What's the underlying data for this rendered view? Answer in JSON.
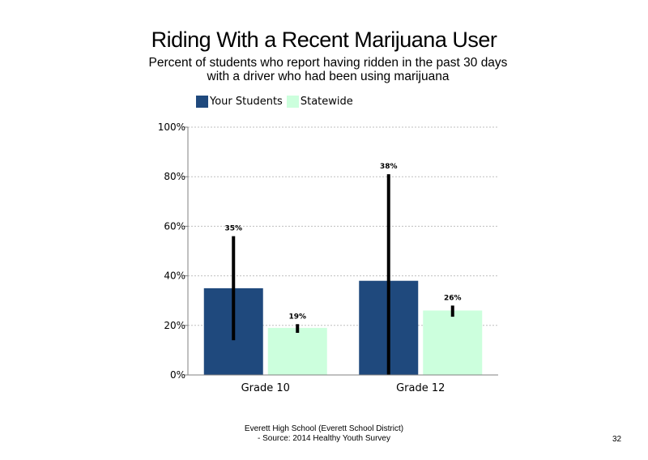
{
  "title": "Riding With a Recent Marijuana User",
  "subtitle": "Percent of students who report having ridden in the past 30 days with a driver who had been using marijuana",
  "footer": {
    "line1": "Everett High School (Everett School District)",
    "line2": "- Source: 2014 Healthy Youth Survey"
  },
  "page_number": "32",
  "colors": {
    "your_students": "#1f497d",
    "statewide": "#ccffdd",
    "error_bar": "#000000",
    "grid": "#bfbfbf",
    "axis": "#808080"
  },
  "chart_data": {
    "type": "bar",
    "categories": [
      "Grade 10",
      "Grade 12"
    ],
    "series": [
      {
        "name": "Your Students",
        "values": [
          35,
          38
        ],
        "labels": [
          "35%",
          "38%"
        ],
        "error_low": [
          14,
          0
        ],
        "error_high": [
          56,
          81
        ]
      },
      {
        "name": "Statewide",
        "values": [
          19,
          26
        ],
        "labels": [
          "19%",
          "26%"
        ],
        "error_low": [
          17,
          23.5
        ],
        "error_high": [
          20.5,
          28
        ]
      }
    ],
    "ylim": [
      0,
      100
    ],
    "yticks": [
      0,
      20,
      40,
      60,
      80,
      100
    ],
    "ytick_labels": [
      "0%",
      "20%",
      "40%",
      "60%",
      "80%",
      "100%"
    ],
    "grid": true,
    "legend_position": "top-left",
    "xlabel": "",
    "ylabel": ""
  }
}
